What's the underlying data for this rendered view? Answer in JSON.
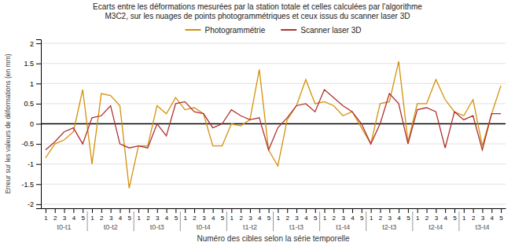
{
  "chart_data": {
    "type": "line",
    "title": "Ecarts entre les déformations mesurées par la station totale et celles calculées par l'algorithme",
    "subtitle": "M3C2, sur les nuages de points photogrammétriques et ceux issus du scanner laser 3D",
    "xlabel": "Numéro des cibles selon la série temporelle",
    "ylabel": "Erreur sur les valeurs de déformations (en mm)",
    "categories": [
      "1",
      "2",
      "3",
      "4",
      "5",
      "1",
      "2",
      "3",
      "4",
      "5",
      "1",
      "2",
      "3",
      "4",
      "5",
      "1",
      "2",
      "3",
      "4",
      "5",
      "1",
      "2",
      "3",
      "4",
      "5",
      "1",
      "2",
      "3",
      "4",
      "5",
      "1",
      "2",
      "3",
      "4",
      "5",
      "1",
      "2",
      "3",
      "4",
      "5",
      "1",
      "2",
      "3",
      "4",
      "5",
      "1",
      "2",
      "3",
      "4",
      "5"
    ],
    "annotations": [
      "t0-t1",
      "t0-t2",
      "t0-t3",
      "t0-t4",
      "t1-t2",
      "t1-t3",
      "t1-t4",
      "t2-t3",
      "t2-t4",
      "t3-t4"
    ],
    "series": [
      {
        "name": "Photogrammétrie",
        "color": "#d4900a",
        "values": [
          -0.85,
          -0.5,
          -0.4,
          -0.2,
          0.85,
          -1.0,
          0.75,
          0.7,
          0.45,
          -1.6,
          -0.55,
          -0.55,
          0.45,
          0.25,
          0.65,
          0.35,
          0.4,
          0.25,
          -0.55,
          -0.55,
          0.0,
          -0.05,
          0.1,
          1.35,
          -0.65,
          -1.05,
          0.1,
          0.45,
          1.1,
          0.5,
          0.55,
          0.45,
          0.2,
          0.3,
          -0.1,
          -0.5,
          0.5,
          0.55,
          1.55,
          -0.45,
          0.5,
          0.5,
          1.1,
          0.6,
          0.3,
          0.2,
          0.6,
          -0.55,
          0.25,
          0.95
        ]
      },
      {
        "name": "Scanner laser 3D",
        "color": "#b03030",
        "values": [
          -0.65,
          -0.45,
          -0.2,
          -0.1,
          -0.5,
          0.15,
          0.2,
          0.45,
          -0.5,
          -0.6,
          -0.55,
          -0.6,
          0.0,
          -0.3,
          0.5,
          0.55,
          0.3,
          0.25,
          -0.1,
          0.0,
          0.35,
          0.2,
          0.1,
          0.15,
          -0.65,
          -0.1,
          0.15,
          0.45,
          0.5,
          0.3,
          0.85,
          0.65,
          0.45,
          0.3,
          0.0,
          -0.5,
          0.0,
          0.75,
          0.5,
          -0.5,
          0.35,
          0.4,
          0.3,
          -0.6,
          0.3,
          0.1,
          0.2,
          -0.65,
          0.25,
          0.25
        ]
      }
    ],
    "ylim": [
      -2.1,
      2.1
    ],
    "yticks": [
      -2,
      -1.5,
      -1,
      -0.5,
      0,
      0.5,
      1,
      1.5,
      2
    ],
    "grid": true,
    "legend": "top"
  }
}
